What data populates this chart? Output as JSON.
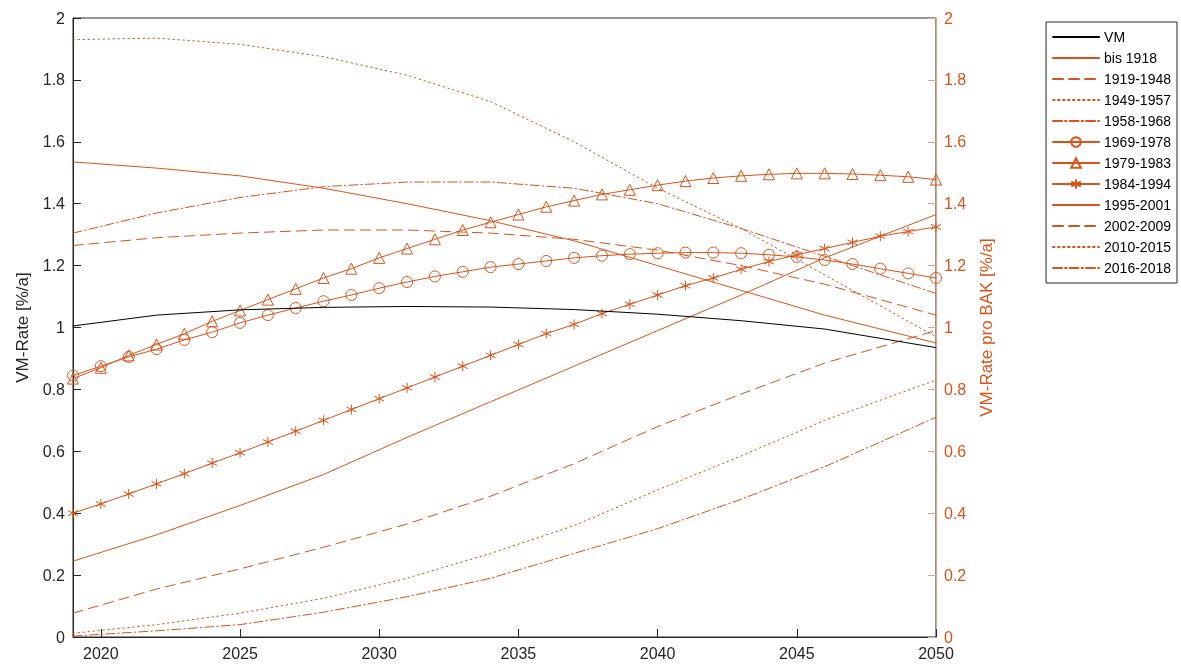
{
  "chart_data": {
    "type": "line",
    "ylabel": "VM-Rate [%/a]",
    "y2label": "VM-Rate pro BAK [%/a]",
    "xlim": [
      2019,
      2050
    ],
    "xticks": [
      2020,
      2025,
      2030,
      2035,
      2040,
      2045,
      2050
    ],
    "ylim": [
      0,
      2
    ],
    "yticks": [
      0,
      0.2,
      0.4,
      0.6,
      0.8,
      1,
      1.2,
      1.4,
      1.6,
      1.8,
      2
    ],
    "y2lim": [
      0,
      2
    ],
    "y2ticks": [
      0,
      0.2,
      0.4,
      0.6,
      0.8,
      1,
      1.2,
      1.4,
      1.6,
      1.8,
      2
    ],
    "grid": false,
    "legend": "right",
    "series": [
      {
        "name": "VM",
        "color": "#000000",
        "line_style": "solid",
        "x": [
          2019,
          2022,
          2025,
          2028,
          2031,
          2034,
          2037,
          2040,
          2043,
          2046,
          2050
        ],
        "values": [
          1.005,
          1.04,
          1.057,
          1.065,
          1.068,
          1.066,
          1.058,
          1.043,
          1.022,
          0.995,
          0.935
        ]
      },
      {
        "name": "bis 1918",
        "color": "#d95319",
        "axis": "y2",
        "line_style": "solid",
        "x": [
          2019,
          2022,
          2025,
          2028,
          2031,
          2034,
          2037,
          2040,
          2043,
          2046,
          2050
        ],
        "values": [
          1.535,
          1.515,
          1.49,
          1.45,
          1.4,
          1.345,
          1.28,
          1.2,
          1.12,
          1.04,
          0.95
        ]
      },
      {
        "name": "1919-1948",
        "color": "#d95319",
        "axis": "y2",
        "line_style": "dashed",
        "x": [
          2019,
          2022,
          2025,
          2028,
          2031,
          2034,
          2037,
          2040,
          2043,
          2046,
          2050
        ],
        "values": [
          1.265,
          1.29,
          1.305,
          1.315,
          1.315,
          1.305,
          1.285,
          1.25,
          1.2,
          1.14,
          1.04
        ]
      },
      {
        "name": "1949-1957",
        "color": "#d95319",
        "axis": "y2",
        "line_style": "dotted",
        "x": [
          2019,
          2022,
          2025,
          2028,
          2031,
          2034,
          2037,
          2040,
          2043,
          2046,
          2050
        ],
        "values": [
          1.93,
          1.935,
          1.915,
          1.875,
          1.815,
          1.73,
          1.6,
          1.45,
          1.32,
          1.17,
          0.97
        ]
      },
      {
        "name": "1958-1968",
        "color": "#d95319",
        "axis": "y2",
        "line_style": "dashdot",
        "x": [
          2019,
          2022,
          2025,
          2028,
          2031,
          2034,
          2037,
          2040,
          2043,
          2046,
          2050
        ],
        "values": [
          1.305,
          1.37,
          1.42,
          1.455,
          1.47,
          1.47,
          1.45,
          1.4,
          1.32,
          1.23,
          1.11
        ]
      },
      {
        "name": "1969-1978",
        "color": "#d95319",
        "axis": "y2",
        "line_style": "solid",
        "marker": "circle",
        "x": [
          2019,
          2020,
          2021,
          2022,
          2023,
          2024,
          2025,
          2026,
          2027,
          2028,
          2029,
          2030,
          2031,
          2032,
          2033,
          2034,
          2035,
          2036,
          2037,
          2038,
          2039,
          2040,
          2041,
          2042,
          2043,
          2044,
          2045,
          2046,
          2047,
          2048,
          2049,
          2050
        ],
        "values": [
          0.845,
          0.875,
          0.905,
          0.93,
          0.96,
          0.985,
          1.015,
          1.04,
          1.063,
          1.085,
          1.105,
          1.127,
          1.147,
          1.165,
          1.18,
          1.195,
          1.205,
          1.215,
          1.225,
          1.232,
          1.237,
          1.24,
          1.242,
          1.242,
          1.24,
          1.235,
          1.228,
          1.218,
          1.205,
          1.19,
          1.175,
          1.16
        ]
      },
      {
        "name": "1979-1983",
        "color": "#d95319",
        "axis": "y2",
        "line_style": "solid",
        "marker": "triangle",
        "x": [
          2019,
          2020,
          2021,
          2022,
          2023,
          2024,
          2025,
          2026,
          2027,
          2028,
          2029,
          2030,
          2031,
          2032,
          2033,
          2034,
          2035,
          2036,
          2037,
          2038,
          2039,
          2040,
          2041,
          2042,
          2043,
          2044,
          2045,
          2046,
          2047,
          2048,
          2049,
          2050
        ],
        "values": [
          0.835,
          0.87,
          0.91,
          0.945,
          0.98,
          1.02,
          1.055,
          1.09,
          1.125,
          1.16,
          1.19,
          1.225,
          1.255,
          1.285,
          1.315,
          1.34,
          1.365,
          1.39,
          1.41,
          1.43,
          1.445,
          1.46,
          1.473,
          1.483,
          1.49,
          1.495,
          1.498,
          1.498,
          1.496,
          1.492,
          1.487,
          1.478
        ]
      },
      {
        "name": "1984-1994",
        "color": "#d95319",
        "axis": "y2",
        "line_style": "solid",
        "marker": "cross",
        "x": [
          2019,
          2020,
          2021,
          2022,
          2023,
          2024,
          2025,
          2026,
          2027,
          2028,
          2029,
          2030,
          2031,
          2032,
          2033,
          2034,
          2035,
          2036,
          2037,
          2038,
          2039,
          2040,
          2041,
          2042,
          2043,
          2044,
          2045,
          2046,
          2047,
          2048,
          2049,
          2050
        ],
        "values": [
          0.4,
          0.43,
          0.462,
          0.495,
          0.528,
          0.562,
          0.595,
          0.63,
          0.665,
          0.7,
          0.735,
          0.77,
          0.805,
          0.84,
          0.875,
          0.91,
          0.945,
          0.98,
          1.01,
          1.045,
          1.075,
          1.105,
          1.135,
          1.16,
          1.188,
          1.213,
          1.235,
          1.255,
          1.275,
          1.295,
          1.31,
          1.325
        ]
      },
      {
        "name": "1995-2001",
        "color": "#d95319",
        "axis": "y2",
        "line_style": "solid",
        "x": [
          2019,
          2022,
          2025,
          2028,
          2031,
          2034,
          2037,
          2040,
          2043,
          2046,
          2050
        ],
        "values": [
          0.245,
          0.33,
          0.425,
          0.525,
          0.645,
          0.76,
          0.875,
          0.99,
          1.105,
          1.225,
          1.365
        ]
      },
      {
        "name": "2002-2009",
        "color": "#d95319",
        "axis": "y2",
        "line_style": "dashed",
        "x": [
          2019,
          2022,
          2025,
          2028,
          2031,
          2034,
          2037,
          2040,
          2043,
          2046,
          2050
        ],
        "values": [
          0.077,
          0.155,
          0.22,
          0.29,
          0.365,
          0.455,
          0.56,
          0.68,
          0.785,
          0.885,
          0.99
        ]
      },
      {
        "name": "2010-2015",
        "color": "#d95319",
        "axis": "y2",
        "line_style": "dotted",
        "x": [
          2019,
          2022,
          2025,
          2028,
          2031,
          2034,
          2037,
          2040,
          2043,
          2046,
          2050
        ],
        "values": [
          0.012,
          0.04,
          0.077,
          0.125,
          0.19,
          0.27,
          0.36,
          0.475,
          0.585,
          0.7,
          0.83
        ]
      },
      {
        "name": "2016-2018",
        "color": "#d95319",
        "axis": "y2",
        "line_style": "dashdot",
        "x": [
          2019,
          2022,
          2025,
          2028,
          2031,
          2034,
          2037,
          2040,
          2043,
          2046,
          2050
        ],
        "values": [
          0.003,
          0.02,
          0.04,
          0.08,
          0.13,
          0.19,
          0.27,
          0.35,
          0.445,
          0.55,
          0.71
        ]
      }
    ]
  }
}
